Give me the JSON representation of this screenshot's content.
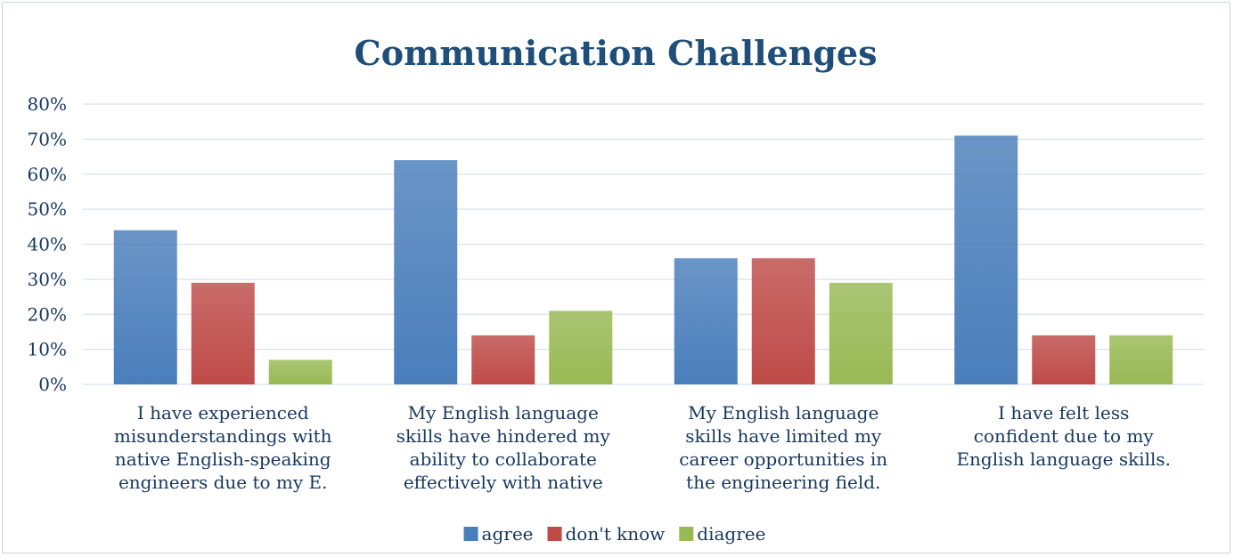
{
  "chart_data": {
    "type": "bar",
    "title": "Communication Challenges",
    "xlabel": "",
    "ylabel": "",
    "ylim": [
      0,
      0.8
    ],
    "yticks": [
      "0%",
      "10%",
      "20%",
      "30%",
      "40%",
      "50%",
      "60%",
      "70%",
      "80%"
    ],
    "grid": true,
    "legend_position": "bottom",
    "categories": [
      "I have experienced misunderstandings with native English-speaking engineers due to my E.",
      "My English language skills have hindered my ability to collaborate effectively with native",
      "My English language skills have limited my career opportunities in the engineering field.",
      "I have felt less confident due to my English language skills."
    ],
    "series": [
      {
        "name": "agree",
        "color": "#4a7ebb",
        "values": [
          0.44,
          0.64,
          0.36,
          0.71
        ]
      },
      {
        "name": "don't know",
        "color": "#be4b48",
        "values": [
          0.29,
          0.14,
          0.36,
          0.14
        ]
      },
      {
        "name": "diagree",
        "color": "#98b954",
        "values": [
          0.07,
          0.21,
          0.29,
          0.14
        ]
      }
    ]
  },
  "colors": {
    "title": "#1f4e79",
    "text": "#17375e",
    "grid": "#d9e2ee",
    "border": "#c6d3e3"
  }
}
